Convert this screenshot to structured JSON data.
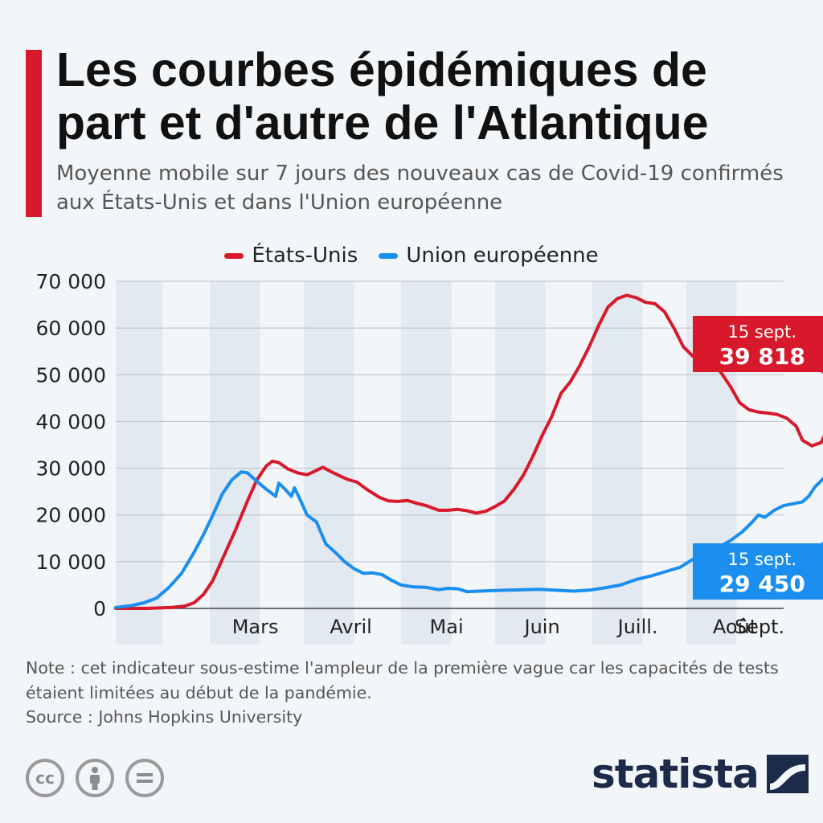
{
  "header": {
    "title": "Les courbes épidémiques de part et d'autre de l'Atlantique",
    "subtitle": "Moyenne mobile sur 7 jours des nouveaux cas de Covid-19 confirmés aux États-Unis et dans l'Union européenne",
    "accent_color": "#d7192b"
  },
  "chart_data": {
    "type": "line",
    "x_unit": "jours depuis le 15 février 2020",
    "x_ticks": [
      {
        "label": "Mars",
        "x": 29
      },
      {
        "label": "Avril",
        "x": 60
      },
      {
        "label": "Mai",
        "x": 90
      },
      {
        "label": "Juin",
        "x": 121
      },
      {
        "label": "Juill.",
        "x": 151
      },
      {
        "label": "Août",
        "x": 182
      },
      {
        "label": "Sept.",
        "x": 213
      }
    ],
    "y_ticks": [
      "0",
      "10 000",
      "20 000",
      "30 000",
      "40 000",
      "50 000",
      "60 000",
      "70 000"
    ],
    "ylim": [
      0,
      70000
    ],
    "xlim": [
      0,
      213
    ],
    "month_bands": [
      [
        0,
        15
      ],
      [
        30,
        46
      ],
      [
        60,
        76
      ],
      [
        91,
        107
      ],
      [
        121,
        137
      ],
      [
        152,
        168
      ],
      [
        182,
        198
      ],
      [
        213,
        228
      ]
    ],
    "grid": true,
    "legend_position": "top-center",
    "series": [
      {
        "name": "États-Unis",
        "color": "#d7192b",
        "points": [
          [
            0,
            0
          ],
          [
            10,
            0
          ],
          [
            18,
            200
          ],
          [
            22,
            500
          ],
          [
            25,
            1200
          ],
          [
            28,
            3000
          ],
          [
            31,
            6000
          ],
          [
            34,
            10500
          ],
          [
            38,
            16500
          ],
          [
            42,
            23000
          ],
          [
            45,
            27500
          ],
          [
            48,
            30500
          ],
          [
            50,
            31500
          ],
          [
            52,
            31200
          ],
          [
            55,
            29800
          ],
          [
            58,
            29000
          ],
          [
            61,
            28600
          ],
          [
            63,
            29200
          ],
          [
            66,
            30200
          ],
          [
            68,
            29500
          ],
          [
            71,
            28500
          ],
          [
            74,
            27600
          ],
          [
            77,
            27000
          ],
          [
            80,
            25500
          ],
          [
            84,
            23800
          ],
          [
            87,
            23000
          ],
          [
            90,
            22900
          ],
          [
            93,
            23100
          ],
          [
            96,
            22500
          ],
          [
            99,
            22000
          ],
          [
            103,
            21000
          ],
          [
            106,
            21000
          ],
          [
            109,
            21200
          ],
          [
            112,
            20900
          ],
          [
            115,
            20400
          ],
          [
            118,
            20800
          ],
          [
            121,
            21800
          ],
          [
            124,
            23000
          ],
          [
            127,
            25500
          ],
          [
            130,
            28500
          ],
          [
            133,
            32500
          ],
          [
            136,
            37000
          ],
          [
            139,
            41000
          ],
          [
            142,
            46000
          ],
          [
            145,
            48500
          ],
          [
            148,
            52000
          ],
          [
            151,
            56000
          ],
          [
            154,
            60500
          ],
          [
            157,
            64500
          ],
          [
            160,
            66300
          ],
          [
            163,
            67000
          ],
          [
            166,
            66500
          ],
          [
            169,
            65500
          ],
          [
            172,
            65200
          ],
          [
            175,
            63500
          ],
          [
            178,
            60000
          ],
          [
            181,
            56000
          ],
          [
            184,
            54000
          ],
          [
            187,
            53500
          ],
          [
            190,
            52500
          ],
          [
            193,
            50500
          ],
          [
            196,
            47500
          ],
          [
            199,
            44000
          ],
          [
            202,
            42500
          ],
          [
            205,
            42000
          ],
          [
            208,
            41800
          ],
          [
            211,
            41500
          ],
          [
            214,
            40700
          ],
          [
            217,
            39000
          ],
          [
            219,
            36000
          ],
          [
            222,
            34800
          ],
          [
            225,
            35500
          ],
          [
            228,
            39818
          ]
        ]
      },
      {
        "name": "Union européenne",
        "color": "#1a8ff0",
        "points": [
          [
            0,
            200
          ],
          [
            5,
            600
          ],
          [
            9,
            1200
          ],
          [
            13,
            2200
          ],
          [
            17,
            4500
          ],
          [
            21,
            7500
          ],
          [
            25,
            12000
          ],
          [
            28,
            15800
          ],
          [
            31,
            20000
          ],
          [
            34,
            24500
          ],
          [
            37,
            27500
          ],
          [
            40,
            29200
          ],
          [
            42,
            29000
          ],
          [
            45,
            27200
          ],
          [
            48,
            25500
          ],
          [
            51,
            24000
          ],
          [
            52,
            26800
          ],
          [
            54,
            25500
          ],
          [
            56,
            24000
          ],
          [
            57,
            25800
          ],
          [
            59,
            23000
          ],
          [
            61,
            20000
          ],
          [
            64,
            18500
          ],
          [
            67,
            13800
          ],
          [
            70,
            12000
          ],
          [
            73,
            10000
          ],
          [
            76,
            8500
          ],
          [
            79,
            7500
          ],
          [
            82,
            7600
          ],
          [
            85,
            7200
          ],
          [
            88,
            6000
          ],
          [
            91,
            5000
          ],
          [
            95,
            4600
          ],
          [
            99,
            4500
          ],
          [
            103,
            4000
          ],
          [
            106,
            4300
          ],
          [
            109,
            4200
          ],
          [
            112,
            3600
          ],
          [
            116,
            3700
          ],
          [
            120,
            3800
          ],
          [
            125,
            3900
          ],
          [
            130,
            4000
          ],
          [
            135,
            4100
          ],
          [
            140,
            3900
          ],
          [
            146,
            3700
          ],
          [
            151,
            3900
          ],
          [
            156,
            4400
          ],
          [
            161,
            5000
          ],
          [
            166,
            6200
          ],
          [
            171,
            7000
          ],
          [
            176,
            8000
          ],
          [
            180,
            8800
          ],
          [
            184,
            10500
          ],
          [
            188,
            11600
          ],
          [
            192,
            13000
          ],
          [
            196,
            14500
          ],
          [
            200,
            16500
          ],
          [
            203,
            18500
          ],
          [
            205,
            20000
          ],
          [
            207,
            19500
          ],
          [
            210,
            21000
          ],
          [
            213,
            22000
          ],
          [
            216,
            22400
          ],
          [
            219,
            22800
          ],
          [
            221,
            24000
          ],
          [
            223,
            26000
          ],
          [
            226,
            28000
          ],
          [
            228,
            29450
          ]
        ]
      }
    ],
    "annotations": [
      {
        "series": "États-Unis",
        "date": "15 sept.",
        "value": "39 818",
        "color": "#d7192b"
      },
      {
        "series": "Union européenne",
        "date": "15 sept.",
        "value": "29 450",
        "color": "#1a8ff0"
      }
    ]
  },
  "footer": {
    "note": "Note : cet indicateur sous-estime l'ampleur de la première vague car les capacités de tests étaient limitées au début de la pandémie.",
    "source": "Source : Johns Hopkins University",
    "license_icons": [
      "cc-icon",
      "attribution-icon",
      "no-derivatives-icon"
    ],
    "cc_label": "cc",
    "brand": "statista",
    "brand_color": "#1c2b4a"
  }
}
